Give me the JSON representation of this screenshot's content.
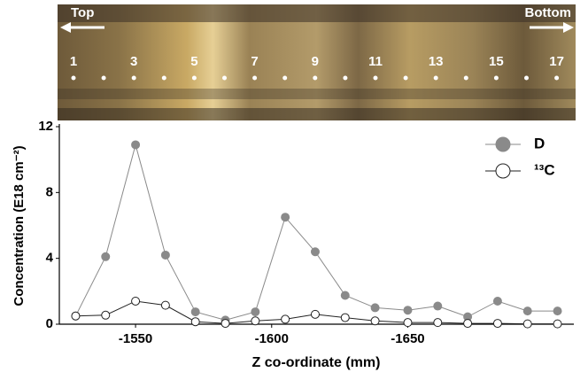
{
  "photo": {
    "left_label": "Top",
    "right_label": "Bottom",
    "section_labels": [
      "1",
      "3",
      "5",
      "7",
      "9",
      "11",
      "13",
      "15",
      "17"
    ]
  },
  "chart_data": {
    "type": "line",
    "x_label": "Z co-ordinate (mm)",
    "y_label": "Concentration (E18 cm⁻²)",
    "x": [
      -1528,
      -1539,
      -1550,
      -1561,
      -1572,
      -1583,
      -1594,
      -1605,
      -1616,
      -1627,
      -1638,
      -1650,
      -1661,
      -1672,
      -1683,
      -1694,
      -1705
    ],
    "series": [
      {
        "name": "D",
        "color": "#8a8a8a",
        "marker_fill": "#8a8a8a",
        "values": [
          0.5,
          4.1,
          10.9,
          4.2,
          0.75,
          0.25,
          0.75,
          6.5,
          4.4,
          1.75,
          1.0,
          0.85,
          1.1,
          0.45,
          1.4,
          0.8,
          0.8
        ]
      },
      {
        "name": "¹³C",
        "color": "#222222",
        "marker_fill": "#ffffff",
        "values": [
          0.5,
          0.55,
          1.4,
          1.15,
          0.15,
          0.05,
          0.2,
          0.3,
          0.6,
          0.4,
          0.2,
          0.1,
          0.1,
          0.05,
          0.05,
          0.02,
          0.02
        ]
      }
    ],
    "xlim": [
      -1522,
      -1711
    ],
    "xticks": [
      -1550,
      -1600,
      -1650
    ],
    "ylim": [
      0,
      12
    ],
    "yticks": [
      0,
      4,
      8,
      12
    ],
    "grid": false,
    "legend": "upper right"
  }
}
